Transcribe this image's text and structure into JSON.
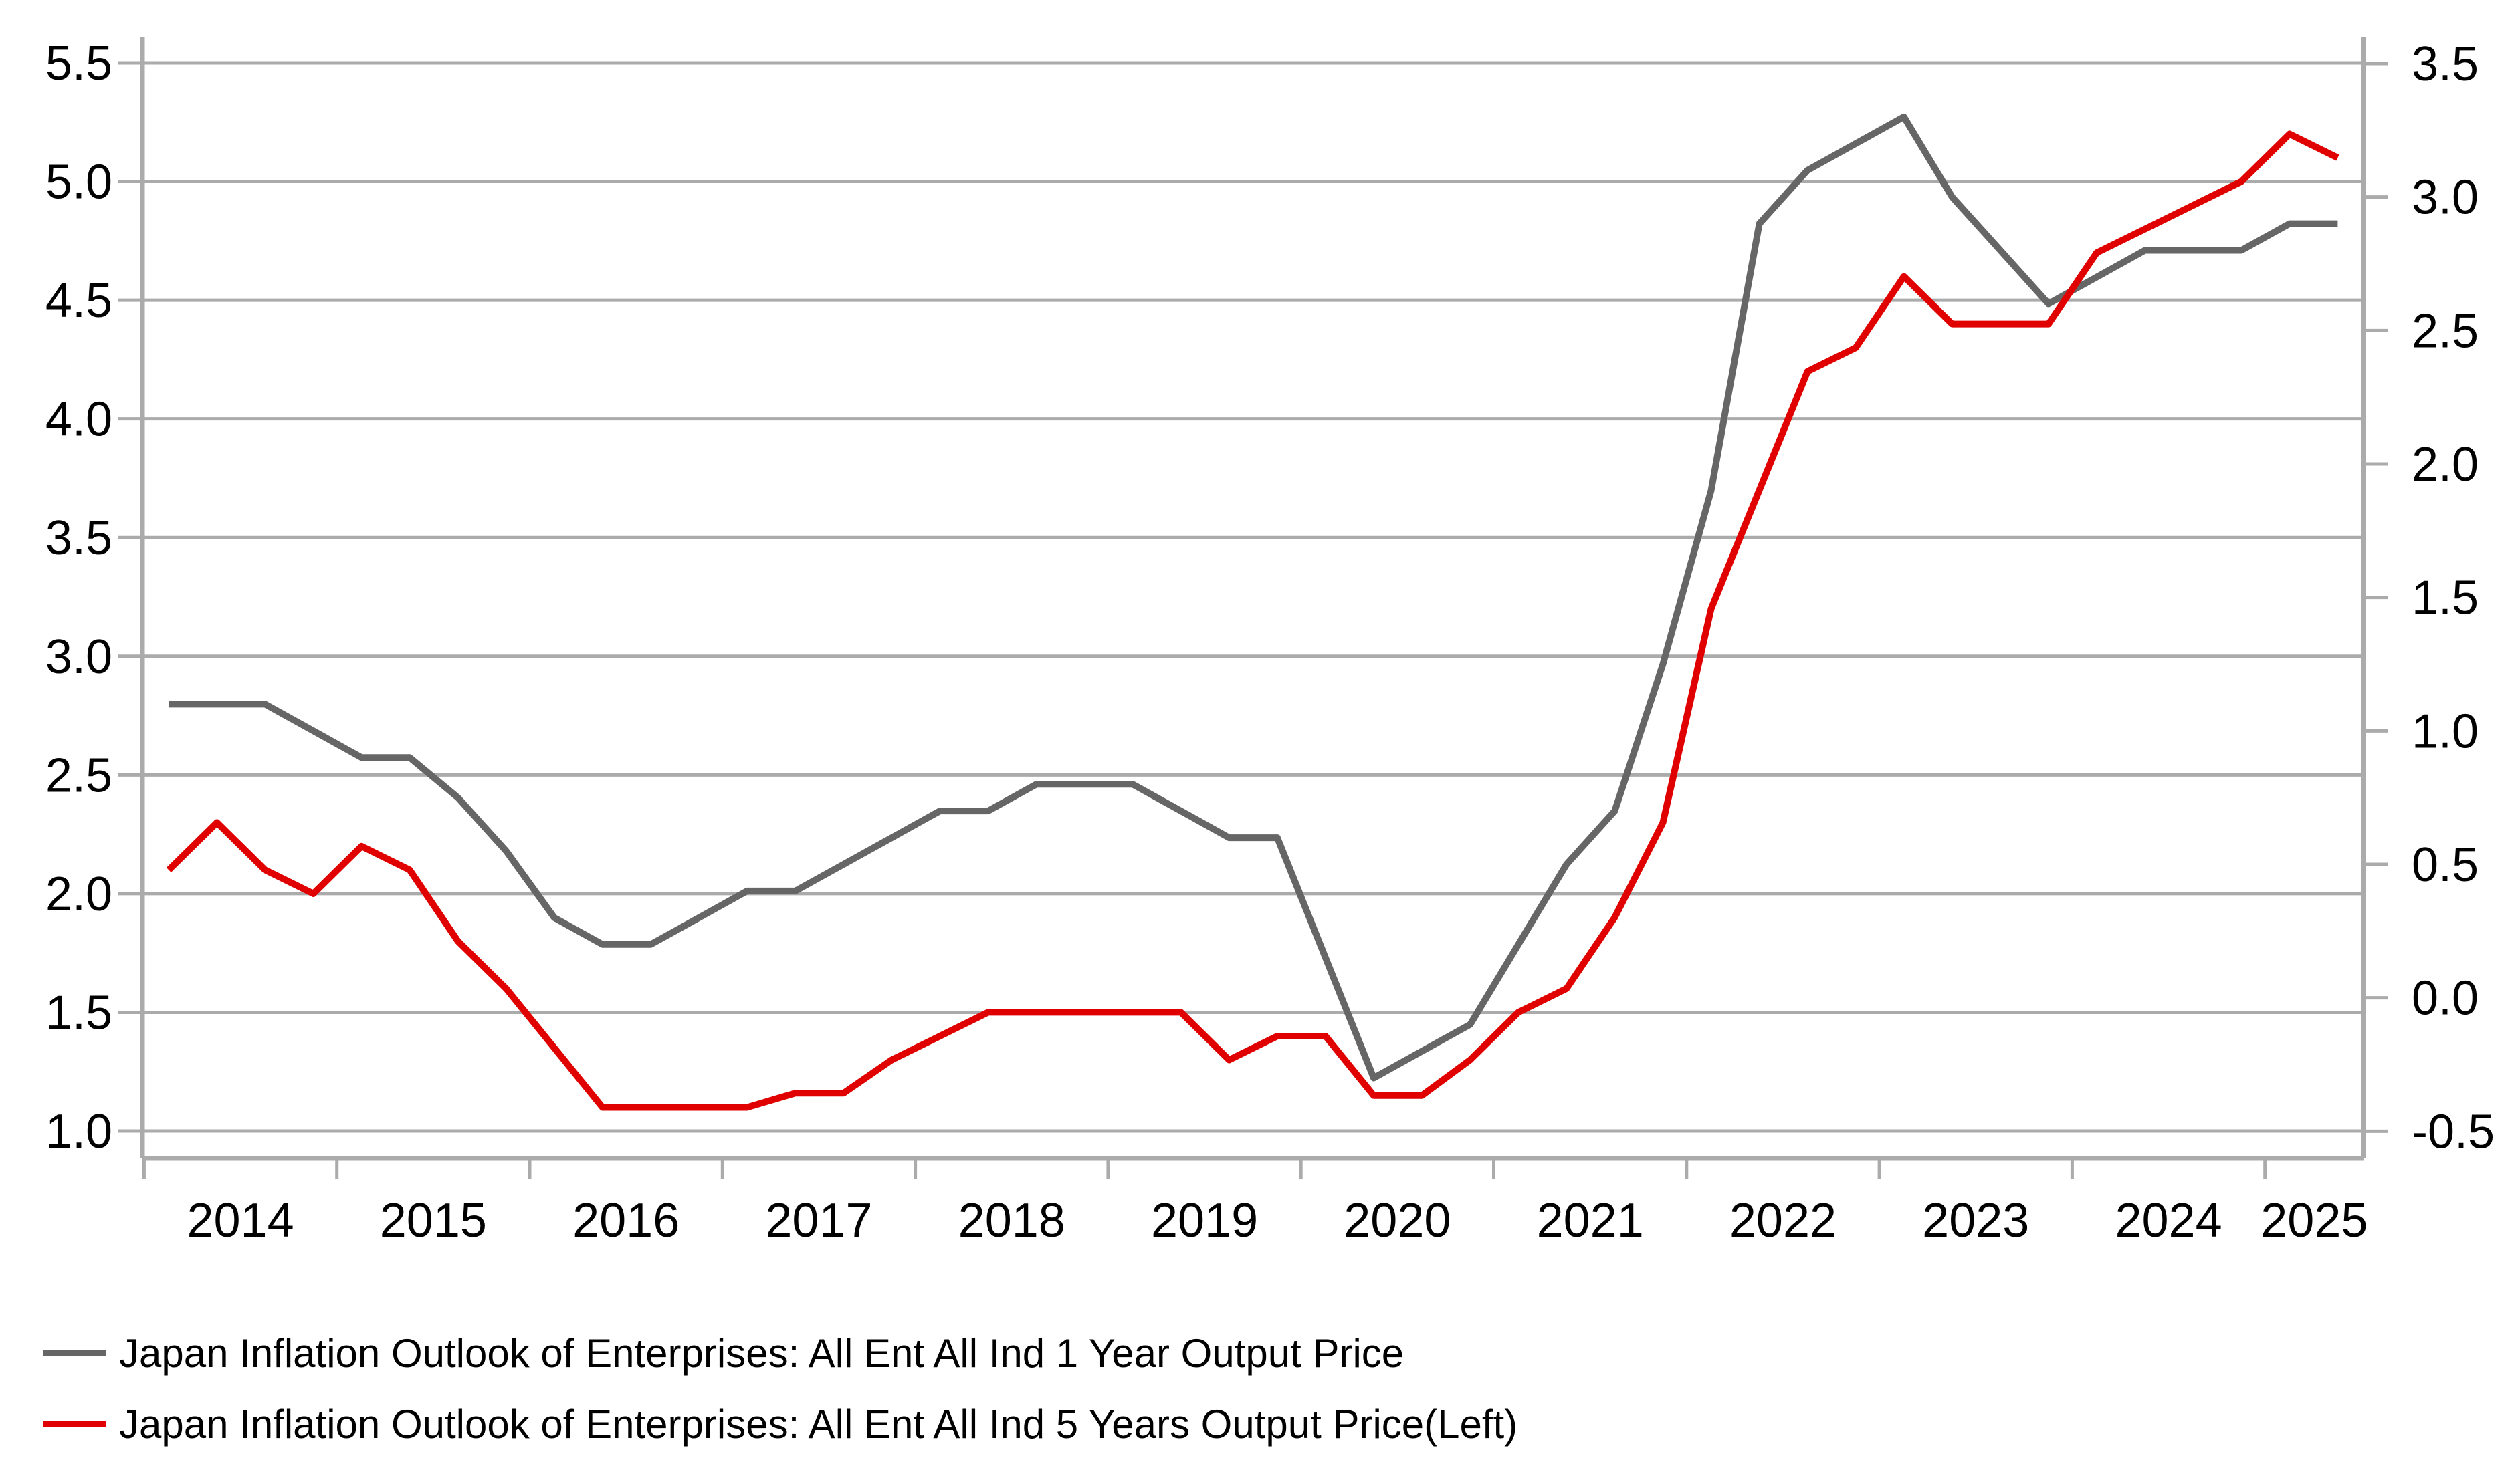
{
  "chart_data": {
    "type": "line",
    "title": "",
    "xlabel": "",
    "ylabel_left": "",
    "ylabel_right": "",
    "grid": true,
    "legend_position": "bottom-left",
    "background_color": "#ffffff",
    "grid_color": "#ababab",
    "axis_color": "#ababab",
    "text_color": "#000000",
    "x_year_labels": [
      "2014",
      "2015",
      "2016",
      "2017",
      "2018",
      "2019",
      "2020",
      "2021",
      "2022",
      "2023",
      "2024",
      "2025"
    ],
    "periods": [
      "Mar-2014",
      "Jun-2014",
      "Sep-2014",
      "Dec-2014",
      "Mar-2015",
      "Jun-2015",
      "Sep-2015",
      "Dec-2015",
      "Mar-2016",
      "Jun-2016",
      "Sep-2016",
      "Dec-2016",
      "Mar-2017",
      "Jun-2017",
      "Sep-2017",
      "Dec-2017",
      "Mar-2018",
      "Jun-2018",
      "Sep-2018",
      "Dec-2018",
      "Mar-2019",
      "Jun-2019",
      "Sep-2019",
      "Dec-2019",
      "Mar-2020",
      "Jun-2020",
      "Sep-2020",
      "Dec-2020",
      "Mar-2021",
      "Jun-2021",
      "Sep-2021",
      "Dec-2021",
      "Mar-2022",
      "Jun-2022",
      "Sep-2022",
      "Dec-2022",
      "Mar-2023",
      "Jun-2023",
      "Sep-2023",
      "Dec-2023",
      "Mar-2024",
      "Jun-2024",
      "Sep-2024",
      "Dec-2024",
      "Mar-2025",
      "Jun-2025"
    ],
    "left_axis": {
      "min": 1.0,
      "max": 5.5,
      "ticks": [
        "5.5",
        "5.0",
        "4.5",
        "4.0",
        "3.5",
        "3.0",
        "2.5",
        "2.0",
        "1.5",
        "1.0"
      ]
    },
    "right_axis": {
      "min": -0.5,
      "max": 3.5,
      "ticks": [
        "3.5",
        "3.0",
        "2.5",
        "2.0",
        "1.5",
        "1.0",
        "0.5",
        "0.0",
        "-0.5"
      ]
    },
    "series": [
      {
        "name": "Japan Inflation Outlook of Enterprises: All Ent All Ind 1 Year Output Price",
        "axis": "right",
        "color": "#666666",
        "values": [
          1.1,
          1.1,
          1.1,
          1.0,
          0.9,
          0.9,
          0.75,
          0.55,
          0.3,
          0.2,
          0.2,
          0.3,
          0.4,
          0.4,
          0.5,
          0.6,
          0.7,
          0.7,
          0.8,
          0.8,
          0.8,
          0.7,
          0.6,
          0.6,
          0.15,
          -0.3,
          -0.2,
          -0.1,
          0.2,
          0.5,
          0.7,
          1.25,
          1.9,
          2.9,
          3.1,
          3.2,
          3.3,
          3.0,
          2.8,
          2.6,
          2.7,
          2.8,
          2.8,
          2.8,
          2.9,
          2.9
        ]
      },
      {
        "name": "Japan Inflation Outlook of Enterprises: All Ent All Ind 5 Years Output Price(Left)",
        "axis": "left",
        "color": "#e00000",
        "values": [
          2.1,
          2.3,
          2.1,
          2.0,
          2.2,
          2.1,
          1.8,
          1.6,
          1.35,
          1.1,
          1.1,
          1.1,
          1.1,
          1.16,
          1.16,
          1.3,
          1.4,
          1.5,
          1.5,
          1.5,
          1.5,
          1.5,
          1.3,
          1.4,
          1.4,
          1.15,
          1.15,
          1.3,
          1.5,
          1.6,
          1.9,
          2.3,
          3.2,
          3.7,
          4.2,
          4.3,
          4.6,
          4.4,
          4.4,
          4.4,
          4.7,
          4.8,
          4.9,
          5.0,
          5.2,
          5.1
        ]
      }
    ]
  }
}
